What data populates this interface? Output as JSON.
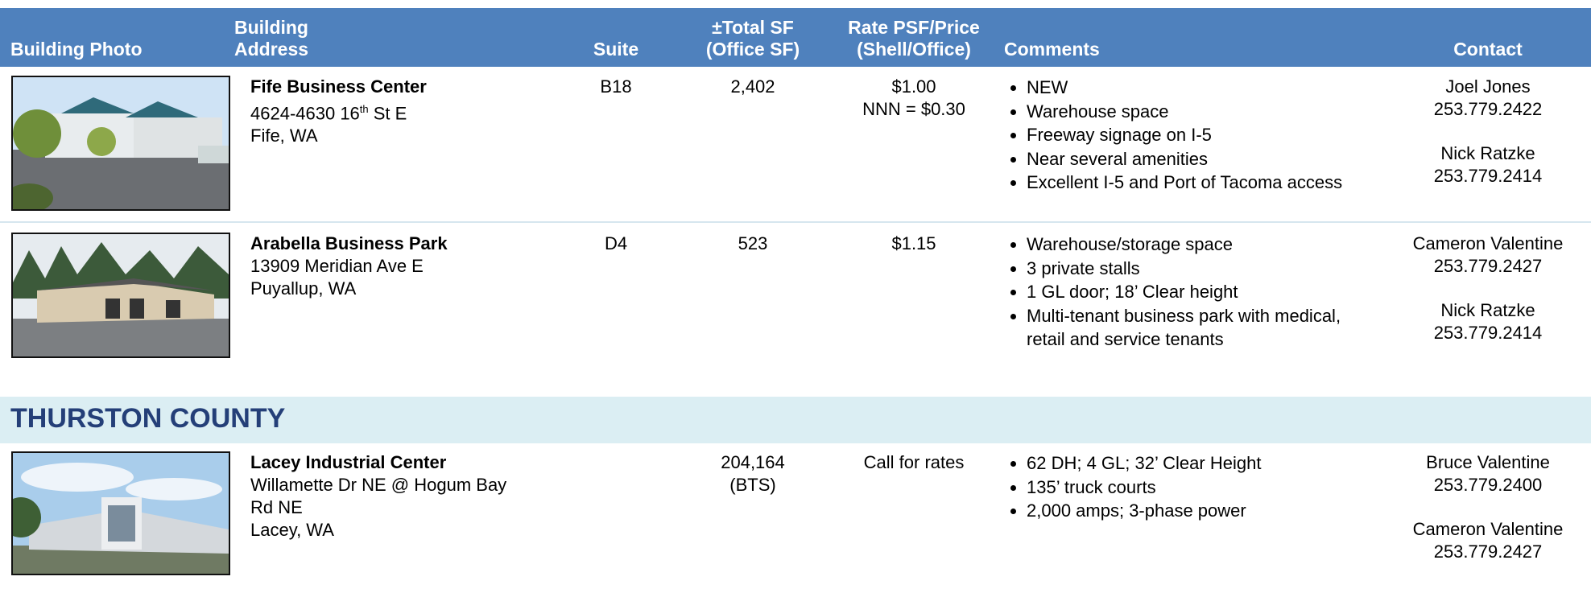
{
  "header": {
    "columns": [
      [
        "Building Photo"
      ],
      [
        "Building",
        "Address"
      ],
      [
        "Suite"
      ],
      [
        "±Total SF",
        "(Office SF)"
      ],
      [
        "Rate PSF/Price",
        "(Shell/Office)"
      ],
      [
        "Comments"
      ],
      [
        "Contact"
      ]
    ]
  },
  "groups": [
    {
      "rows": [
        {
          "name": "Fife Business Center",
          "address": [
            {
              "text": "4624-4630 16",
              "sup": "th",
              "rest": " St E"
            },
            "Fife, WA"
          ],
          "suite": "B18",
          "sf": [
            "2,402"
          ],
          "rate": [
            "$1.00",
            "NNN = $0.30"
          ],
          "comments": [
            "NEW",
            "Warehouse space",
            "Freeway signage on I-5",
            "Near several amenities",
            "Excellent I-5 and Port of Tacoma access"
          ],
          "contacts": [
            {
              "name": "Joel Jones",
              "phone": "253.779.2422"
            },
            {
              "name": "Nick Ratzke",
              "phone": "253.779.2414"
            }
          ]
        },
        {
          "name": "Arabella Business Park",
          "address": [
            "13909 Meridian Ave E",
            "Puyallup, WA"
          ],
          "suite": "D4",
          "sf": [
            "523"
          ],
          "rate": [
            "$1.15"
          ],
          "comments": [
            "Warehouse/storage space",
            "3 private stalls",
            "1 GL door; 18’ Clear height",
            "Multi-tenant business park with medical, retail and service tenants"
          ],
          "contacts": [
            {
              "name": "Cameron Valentine",
              "phone": "253.779.2427"
            },
            {
              "name": "Nick Ratzke",
              "phone": "253.779.2414"
            }
          ]
        }
      ]
    },
    {
      "heading": "THURSTON COUNTY",
      "rows": [
        {
          "name": "Lacey Industrial Center",
          "address": [
            "Willamette Dr NE @ Hogum Bay",
            "Rd NE",
            "Lacey, WA"
          ],
          "sf": [
            "204,164",
            "(BTS)"
          ],
          "rate": [
            "Call for rates"
          ],
          "comments": [
            "62 DH; 4 GL; 32’ Clear Height",
            "135’ truck courts",
            "2,000 amps; 3-phase power"
          ],
          "contacts": [
            {
              "name": "Bruce Valentine",
              "phone": "253.779.2400"
            },
            {
              "name": "Cameron Valentine",
              "phone": "253.779.2427"
            }
          ]
        }
      ]
    }
  ]
}
